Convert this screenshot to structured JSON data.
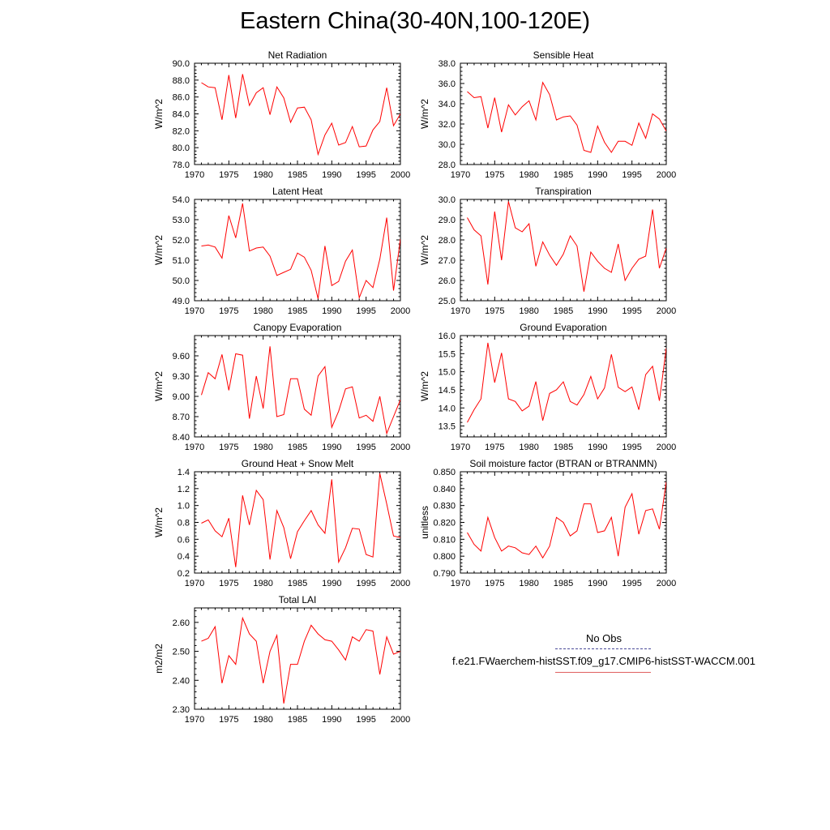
{
  "page": {
    "title": "Eastern China(30-40N,100-120E)"
  },
  "legend": {
    "obs_label": "No Obs",
    "obs_color": "#4a4a99",
    "model_label": "f.e21.FWaerchem-histSST.f09_g17.CMIP6-histSST-WACCM.001",
    "model_color": "#e06060"
  },
  "chart_data": [
    {
      "type": "line",
      "title": "Net Radiation",
      "ylabel": "W/m^2",
      "xlim": [
        1970,
        2000
      ],
      "ylim": [
        78,
        90
      ],
      "x_ticks": [
        1970,
        1975,
        1980,
        1985,
        1990,
        1995,
        2000
      ],
      "y_ticks": [
        78,
        80,
        82,
        84,
        86,
        88,
        90
      ],
      "y_tick_labels": [
        "78.0",
        "80.0",
        "82.0",
        "84.0",
        "86.0",
        "88.0",
        "90.0"
      ],
      "series": [
        {
          "color": "#ff0000",
          "x": [
            1971,
            1972,
            1973,
            1974,
            1975,
            1976,
            1977,
            1978,
            1979,
            1980,
            1981,
            1982,
            1983,
            1984,
            1985,
            1986,
            1987,
            1988,
            1989,
            1990,
            1991,
            1992,
            1993,
            1994,
            1995,
            1996,
            1997,
            1998,
            1999,
            2000
          ],
          "values": [
            87.7,
            87.2,
            87.1,
            83.3,
            88.6,
            83.5,
            88.7,
            85.0,
            86.5,
            87.1,
            83.9,
            87.2,
            85.9,
            83.0,
            84.7,
            84.8,
            83.3,
            79.2,
            81.5,
            82.9,
            80.3,
            80.6,
            82.5,
            80.1,
            80.2,
            82.1,
            83.1,
            87.1,
            82.6,
            84.0
          ]
        }
      ]
    },
    {
      "type": "line",
      "title": "Sensible Heat",
      "ylabel": "W/m^2",
      "xlim": [
        1970,
        2000
      ],
      "ylim": [
        28,
        38
      ],
      "x_ticks": [
        1970,
        1975,
        1980,
        1985,
        1990,
        1995,
        2000
      ],
      "y_ticks": [
        28,
        30,
        32,
        34,
        36,
        38
      ],
      "y_tick_labels": [
        "28.0",
        "30.0",
        "32.0",
        "34.0",
        "36.0",
        "38.0"
      ],
      "series": [
        {
          "color": "#ff0000",
          "x": [
            1971,
            1972,
            1973,
            1974,
            1975,
            1976,
            1977,
            1978,
            1979,
            1980,
            1981,
            1982,
            1983,
            1984,
            1985,
            1986,
            1987,
            1988,
            1989,
            1990,
            1991,
            1992,
            1993,
            1994,
            1995,
            1996,
            1997,
            1998,
            1999,
            2000
          ],
          "values": [
            35.2,
            34.6,
            34.7,
            31.6,
            34.6,
            31.2,
            33.9,
            32.9,
            33.7,
            34.3,
            32.4,
            36.1,
            34.9,
            32.4,
            32.7,
            32.8,
            31.9,
            29.4,
            29.2,
            31.8,
            30.2,
            29.2,
            30.3,
            30.3,
            29.9,
            32.1,
            30.6,
            33.0,
            32.5,
            31.3
          ]
        }
      ]
    },
    {
      "type": "line",
      "title": "Latent Heat",
      "ylabel": "W/m^2",
      "xlim": [
        1970,
        2000
      ],
      "ylim": [
        49,
        54
      ],
      "x_ticks": [
        1970,
        1975,
        1980,
        1985,
        1990,
        1995,
        2000
      ],
      "y_ticks": [
        49,
        50,
        51,
        52,
        53,
        54
      ],
      "y_tick_labels": [
        "49.0",
        "50.0",
        "51.0",
        "52.0",
        "53.0",
        "54.0"
      ],
      "series": [
        {
          "color": "#ff0000",
          "x": [
            1971,
            1972,
            1973,
            1974,
            1975,
            1976,
            1977,
            1978,
            1979,
            1980,
            1981,
            1982,
            1983,
            1984,
            1985,
            1986,
            1987,
            1988,
            1989,
            1990,
            1991,
            1992,
            1993,
            1994,
            1995,
            1996,
            1997,
            1998,
            1999,
            2000
          ],
          "values": [
            51.7,
            51.75,
            51.65,
            51.1,
            53.2,
            52.1,
            53.8,
            51.45,
            51.6,
            51.65,
            51.2,
            50.25,
            50.4,
            50.55,
            51.35,
            51.15,
            50.5,
            49.1,
            51.7,
            49.75,
            49.95,
            50.95,
            51.5,
            49.15,
            50.0,
            49.65,
            51.05,
            53.1,
            49.5,
            52.05
          ]
        }
      ]
    },
    {
      "type": "line",
      "title": "Transpiration",
      "ylabel": "W/m^2",
      "xlim": [
        1970,
        2000
      ],
      "ylim": [
        25,
        30
      ],
      "x_ticks": [
        1970,
        1975,
        1980,
        1985,
        1990,
        1995,
        2000
      ],
      "y_ticks": [
        25,
        26,
        27,
        28,
        29,
        30
      ],
      "y_tick_labels": [
        "25.0",
        "26.0",
        "27.0",
        "28.0",
        "29.0",
        "30.0"
      ],
      "series": [
        {
          "color": "#ff0000",
          "x": [
            1971,
            1972,
            1973,
            1974,
            1975,
            1976,
            1977,
            1978,
            1979,
            1980,
            1981,
            1982,
            1983,
            1984,
            1985,
            1986,
            1987,
            1988,
            1989,
            1990,
            1991,
            1992,
            1993,
            1994,
            1995,
            1996,
            1997,
            1998,
            1999,
            2000
          ],
          "values": [
            29.1,
            28.5,
            28.2,
            25.8,
            29.4,
            27.0,
            29.9,
            28.6,
            28.4,
            28.8,
            26.7,
            27.9,
            27.25,
            26.75,
            27.3,
            28.2,
            27.7,
            25.45,
            27.4,
            26.95,
            26.6,
            26.4,
            27.8,
            26.0,
            26.6,
            27.05,
            27.2,
            29.5,
            26.6,
            27.6
          ]
        }
      ]
    },
    {
      "type": "line",
      "title": "Canopy Evaporation",
      "ylabel": "W/m^2",
      "xlim": [
        1970,
        2000
      ],
      "ylim": [
        8.4,
        9.9
      ],
      "x_ticks": [
        1970,
        1975,
        1980,
        1985,
        1990,
        1995,
        2000
      ],
      "y_ticks": [
        8.4,
        8.7,
        9.0,
        9.3,
        9.6
      ],
      "y_tick_labels": [
        "8.40",
        "8.70",
        "9.00",
        "9.30",
        "9.60"
      ],
      "series": [
        {
          "color": "#ff0000",
          "x": [
            1971,
            1972,
            1973,
            1974,
            1975,
            1976,
            1977,
            1978,
            1979,
            1980,
            1981,
            1982,
            1983,
            1984,
            1985,
            1986,
            1987,
            1988,
            1989,
            1990,
            1991,
            1992,
            1993,
            1994,
            1995,
            1996,
            1997,
            1998,
            1999,
            2000
          ],
          "values": [
            9.02,
            9.35,
            9.26,
            9.62,
            9.09,
            9.63,
            9.61,
            8.67,
            9.3,
            8.82,
            9.74,
            8.7,
            8.73,
            9.26,
            9.26,
            8.81,
            8.72,
            9.3,
            9.44,
            8.54,
            8.78,
            9.11,
            9.14,
            8.68,
            8.72,
            8.63,
            9.0,
            8.45,
            8.7,
            8.95
          ]
        }
      ]
    },
    {
      "type": "line",
      "title": "Ground Evaporation",
      "ylabel": "W/m^2",
      "xlim": [
        1970,
        2000
      ],
      "ylim": [
        13.2,
        16
      ],
      "x_ticks": [
        1970,
        1975,
        1980,
        1985,
        1990,
        1995,
        2000
      ],
      "y_ticks": [
        13.5,
        14.0,
        14.5,
        15.0,
        15.5,
        16.0
      ],
      "y_tick_labels": [
        "13.5",
        "14.0",
        "14.5",
        "15.0",
        "15.5",
        "16.0"
      ],
      "series": [
        {
          "color": "#ff0000",
          "x": [
            1971,
            1972,
            1973,
            1974,
            1975,
            1976,
            1977,
            1978,
            1979,
            1980,
            1981,
            1982,
            1983,
            1984,
            1985,
            1986,
            1987,
            1988,
            1989,
            1990,
            1991,
            1992,
            1993,
            1994,
            1995,
            1996,
            1997,
            1998,
            1999,
            2000
          ],
          "values": [
            13.6,
            13.95,
            14.25,
            15.8,
            14.7,
            15.52,
            14.25,
            14.18,
            13.92,
            14.05,
            14.73,
            13.65,
            14.4,
            14.5,
            14.72,
            14.18,
            14.08,
            14.37,
            14.87,
            14.25,
            14.55,
            15.48,
            14.57,
            14.45,
            14.58,
            13.95,
            14.92,
            15.15,
            14.2,
            15.65
          ]
        }
      ]
    },
    {
      "type": "line",
      "title": "Ground Heat + Snow Melt",
      "ylabel": "W/m^2",
      "xlim": [
        1970,
        2000
      ],
      "ylim": [
        0.2,
        1.4
      ],
      "x_ticks": [
        1970,
        1975,
        1980,
        1985,
        1990,
        1995,
        2000
      ],
      "y_ticks": [
        0.2,
        0.4,
        0.6,
        0.8,
        1.0,
        1.2,
        1.4
      ],
      "y_tick_labels": [
        "0.2",
        "0.4",
        "0.6",
        "0.8",
        "1.0",
        "1.2",
        "1.4"
      ],
      "series": [
        {
          "color": "#ff0000",
          "x": [
            1971,
            1972,
            1973,
            1974,
            1975,
            1976,
            1977,
            1978,
            1979,
            1980,
            1981,
            1982,
            1983,
            1984,
            1985,
            1986,
            1987,
            1988,
            1989,
            1990,
            1991,
            1992,
            1993,
            1994,
            1995,
            1996,
            1997,
            1998,
            1999,
            2000
          ],
          "values": [
            0.79,
            0.83,
            0.7,
            0.63,
            0.85,
            0.27,
            1.12,
            0.77,
            1.18,
            1.07,
            0.36,
            0.94,
            0.74,
            0.37,
            0.69,
            0.82,
            0.94,
            0.77,
            0.67,
            1.31,
            0.33,
            0.5,
            0.73,
            0.72,
            0.42,
            0.39,
            1.38,
            1.02,
            0.64,
            0.62
          ]
        }
      ]
    },
    {
      "type": "line",
      "title": "Soil moisture factor (BTRAN or BTRANMN)",
      "ylabel": "unitless",
      "xlim": [
        1970,
        2000
      ],
      "ylim": [
        0.79,
        0.85
      ],
      "x_ticks": [
        1970,
        1975,
        1980,
        1985,
        1990,
        1995,
        2000
      ],
      "y_ticks": [
        0.79,
        0.8,
        0.81,
        0.82,
        0.83,
        0.84,
        0.85
      ],
      "y_tick_labels": [
        "0.790",
        "0.800",
        "0.810",
        "0.820",
        "0.830",
        "0.840",
        "0.850"
      ],
      "series": [
        {
          "color": "#ff0000",
          "x": [
            1971,
            1972,
            1973,
            1974,
            1975,
            1976,
            1977,
            1978,
            1979,
            1980,
            1981,
            1982,
            1983,
            1984,
            1985,
            1986,
            1987,
            1988,
            1989,
            1990,
            1991,
            1992,
            1993,
            1994,
            1995,
            1996,
            1997,
            1998,
            1999,
            2000
          ],
          "values": [
            0.814,
            0.807,
            0.803,
            0.823,
            0.811,
            0.803,
            0.806,
            0.805,
            0.802,
            0.801,
            0.806,
            0.799,
            0.806,
            0.823,
            0.82,
            0.812,
            0.815,
            0.831,
            0.831,
            0.814,
            0.815,
            0.823,
            0.8,
            0.829,
            0.837,
            0.813,
            0.827,
            0.828,
            0.816,
            0.844
          ]
        }
      ]
    },
    {
      "type": "line",
      "title": "Total LAI",
      "ylabel": "m2/m2",
      "xlim": [
        1970,
        2000
      ],
      "ylim": [
        2.3,
        2.65
      ],
      "x_ticks": [
        1970,
        1975,
        1980,
        1985,
        1990,
        1995,
        2000
      ],
      "y_ticks": [
        2.3,
        2.4,
        2.5,
        2.6
      ],
      "y_tick_labels": [
        "2.30",
        "2.40",
        "2.50",
        "2.60"
      ],
      "series": [
        {
          "color": "#ff0000",
          "x": [
            1971,
            1972,
            1973,
            1974,
            1975,
            1976,
            1977,
            1978,
            1979,
            1980,
            1981,
            1982,
            1983,
            1984,
            1985,
            1986,
            1987,
            1988,
            1989,
            1990,
            1991,
            1992,
            1993,
            1994,
            1995,
            1996,
            1997,
            1998,
            1999,
            2000
          ],
          "values": [
            2.535,
            2.545,
            2.585,
            2.39,
            2.485,
            2.455,
            2.615,
            2.56,
            2.535,
            2.39,
            2.5,
            2.555,
            2.32,
            2.455,
            2.455,
            2.535,
            2.59,
            2.56,
            2.54,
            2.535,
            2.505,
            2.47,
            2.55,
            2.535,
            2.575,
            2.57,
            2.42,
            2.55,
            2.49,
            2.5
          ]
        }
      ]
    }
  ]
}
